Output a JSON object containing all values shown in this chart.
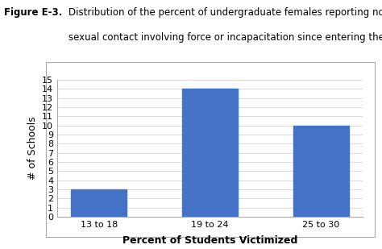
{
  "categories": [
    "13 to 18",
    "19 to 24",
    "25 to 30"
  ],
  "values": [
    3,
    14,
    10
  ],
  "bar_color": "#4472C4",
  "xlabel": "Percent of Students Victimized",
  "ylabel": "# of Schools",
  "ylim": [
    0,
    15
  ],
  "yticks": [
    0,
    1,
    2,
    3,
    4,
    5,
    6,
    7,
    8,
    9,
    10,
    11,
    12,
    13,
    14,
    15
  ],
  "figure_label": "Figure E-3.",
  "title_line1": "Distribution of the percent of undergraduate females reporting nonconsensual",
  "title_line2": "sexual contact involving force or incapacitation since entering the IHE",
  "background_color": "#ffffff",
  "plot_bg_color": "#ffffff",
  "grid_color": "#cccccc",
  "bar_width": 0.5,
  "xlabel_fontsize": 9,
  "ylabel_fontsize": 9,
  "tick_fontsize": 8,
  "title_fontsize": 8.5,
  "figure_label_fontsize": 8.5
}
